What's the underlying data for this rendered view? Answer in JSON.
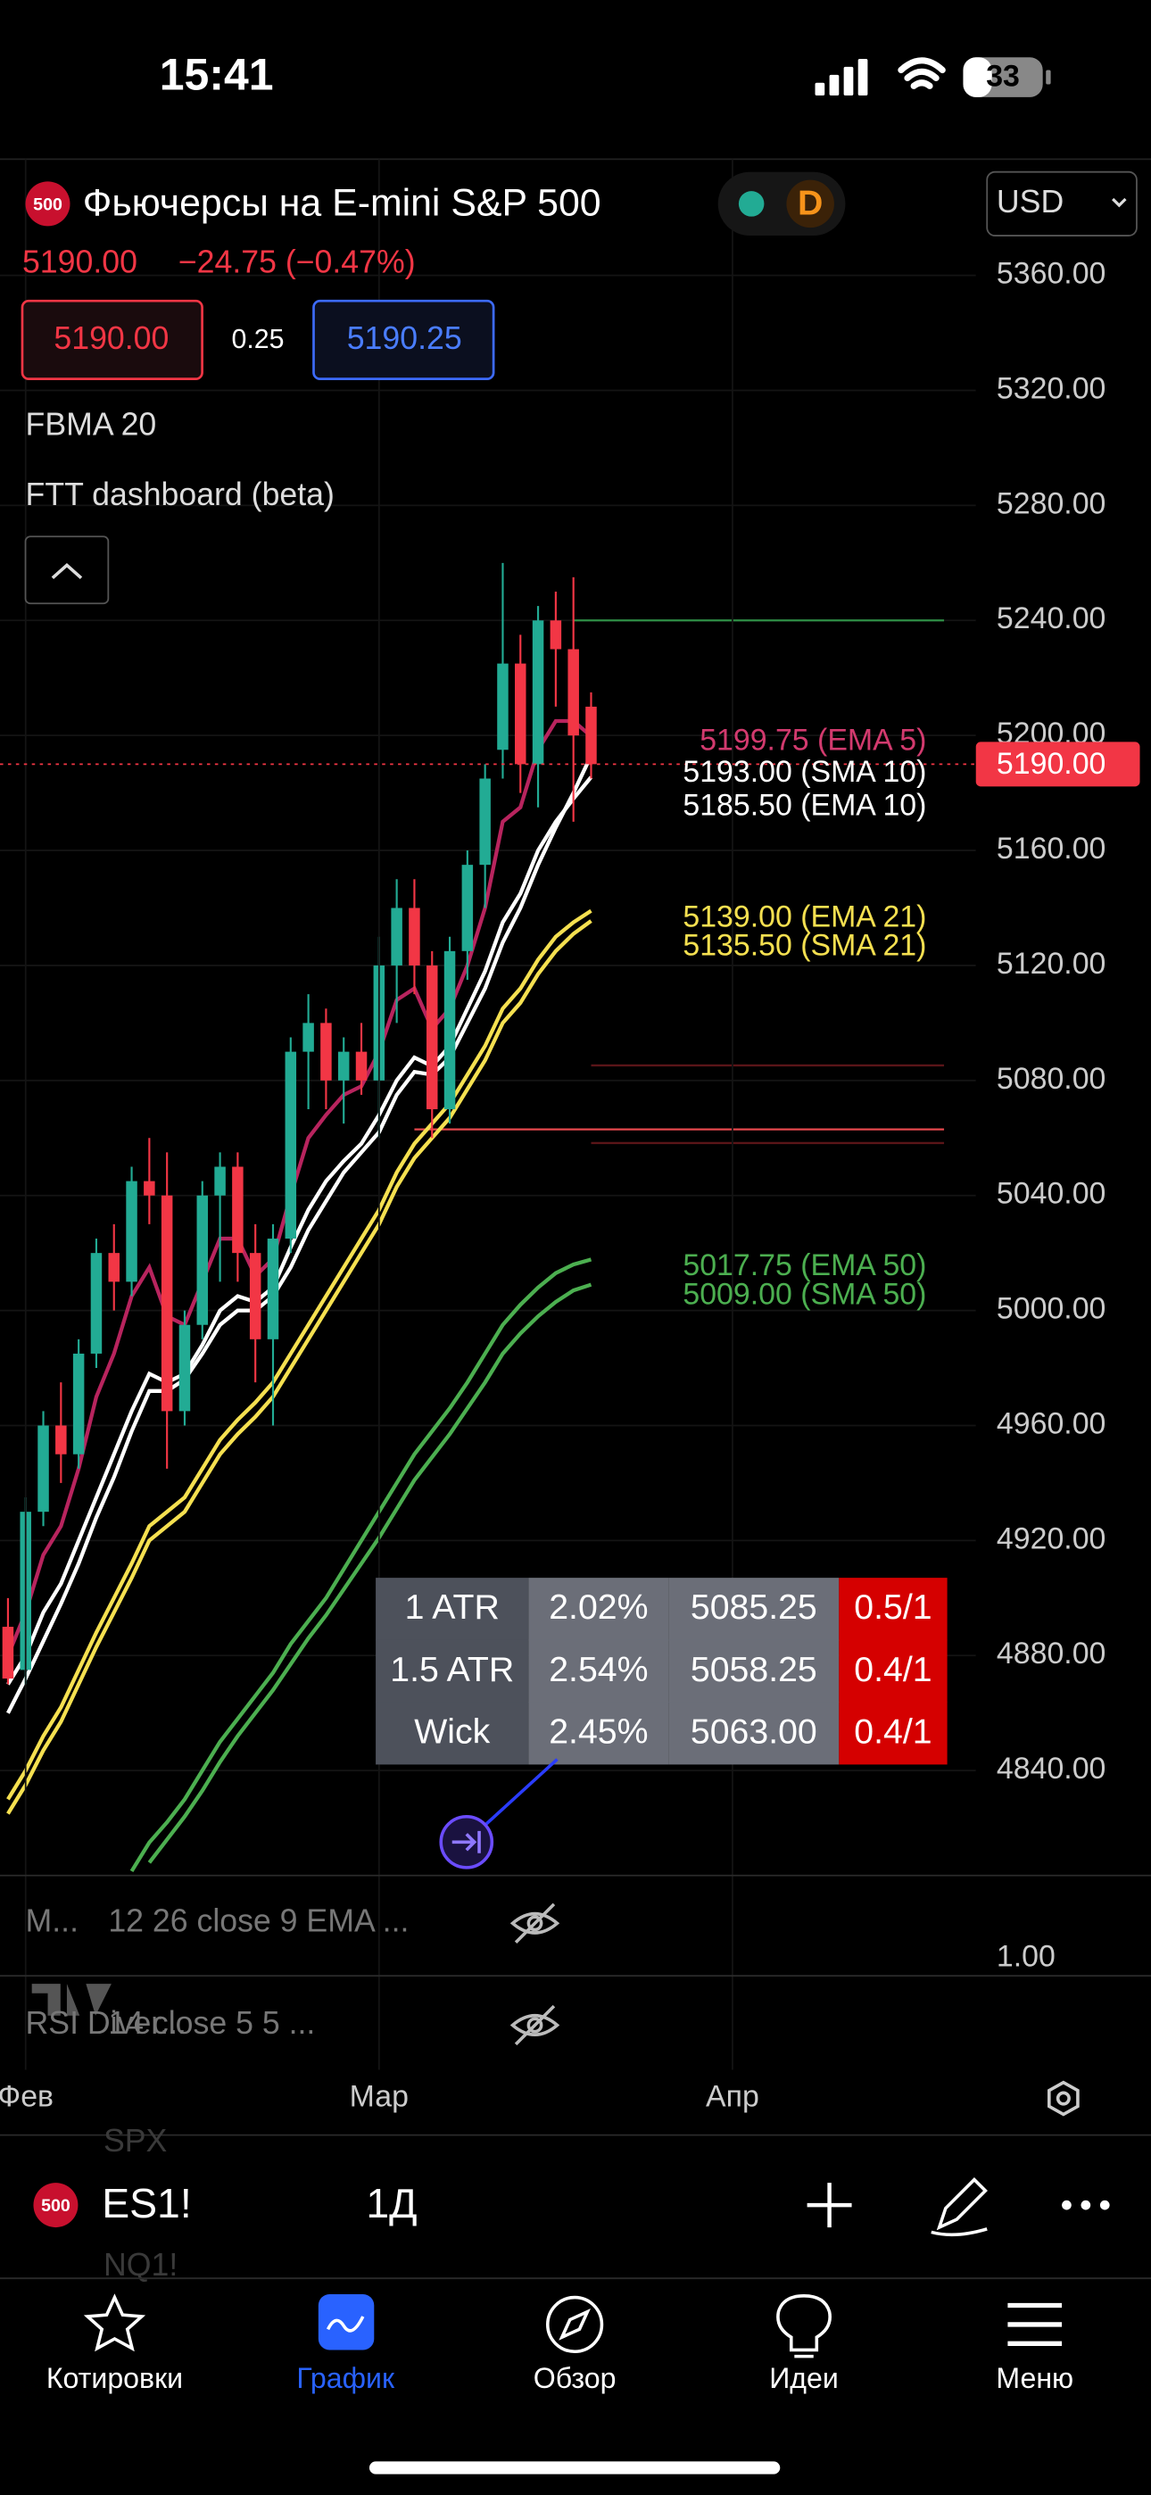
{
  "status_bar": {
    "time": "15:41",
    "battery": "33"
  },
  "header": {
    "symbol_badge": "500",
    "title": "Фьючерсы на E-mini S&P 500",
    "interval_badge": "D",
    "currency": "USD",
    "price": "5190.00",
    "change": "−24.75 (−0.47%)",
    "bid": "5190.00",
    "spread": "0.25",
    "ask": "5190.25",
    "indicators": [
      "FBMA 20",
      "FTT dashboard (beta)"
    ]
  },
  "chart_data": {
    "type": "candlestick",
    "ylim": [
      4803.5,
      5400.4
    ],
    "yticks": [
      {
        "value": 5360,
        "label": "5360.00"
      },
      {
        "value": 5320,
        "label": "5320.00"
      },
      {
        "value": 5280,
        "label": "5280.00"
      },
      {
        "value": 5240,
        "label": "5240.00"
      },
      {
        "value": 5200,
        "label": "5200.00"
      },
      {
        "value": 5160,
        "label": "5160.00"
      },
      {
        "value": 5120,
        "label": "5120.00"
      },
      {
        "value": 5080,
        "label": "5080.00"
      },
      {
        "value": 5040,
        "label": "5040.00"
      },
      {
        "value": 5000,
        "label": "5000.00"
      },
      {
        "value": 4960,
        "label": "4960.00"
      },
      {
        "value": 4920,
        "label": "4920.00"
      },
      {
        "value": 4880,
        "label": "4880.00"
      },
      {
        "value": 4840,
        "label": "4840.00"
      }
    ],
    "xticks": [
      {
        "value": 1,
        "label": "Фев"
      },
      {
        "value": 21,
        "label": "Мар"
      },
      {
        "value": 41,
        "label": "Апр"
      }
    ],
    "grid": true,
    "up_color": "#22ab94",
    "down_color": "#f23645",
    "candles": [
      {
        "open": 4890,
        "high": 4900,
        "low": 4870,
        "close": 4872
      },
      {
        "open": 4875,
        "high": 4935,
        "low": 4870,
        "close": 4930
      },
      {
        "open": 4930,
        "high": 4965,
        "low": 4925,
        "close": 4960
      },
      {
        "open": 4960,
        "high": 4975,
        "low": 4940,
        "close": 4950
      },
      {
        "open": 4950,
        "high": 4990,
        "low": 4945,
        "close": 4985
      },
      {
        "open": 4985,
        "high": 5025,
        "low": 4980,
        "close": 5020
      },
      {
        "open": 5020,
        "high": 5030,
        "low": 5000,
        "close": 5010
      },
      {
        "open": 5010,
        "high": 5050,
        "low": 5005,
        "close": 5045
      },
      {
        "open": 5045,
        "high": 5060,
        "low": 5030,
        "close": 5040
      },
      {
        "open": 5040,
        "high": 5055,
        "low": 4945,
        "close": 4965
      },
      {
        "open": 4965,
        "high": 5000,
        "low": 4960,
        "close": 4995
      },
      {
        "open": 4995,
        "high": 5045,
        "low": 4990,
        "close": 5040
      },
      {
        "open": 5040,
        "high": 5055,
        "low": 5010,
        "close": 5050
      },
      {
        "open": 5050,
        "high": 5055,
        "low": 5010,
        "close": 5020
      },
      {
        "open": 5020,
        "high": 5030,
        "low": 4975,
        "close": 4990
      },
      {
        "open": 4990,
        "high": 5030,
        "low": 4960,
        "close": 5025
      },
      {
        "open": 5025,
        "high": 5095,
        "low": 5020,
        "close": 5090
      },
      {
        "open": 5090,
        "high": 5110,
        "low": 5070,
        "close": 5100
      },
      {
        "open": 5100,
        "high": 5105,
        "low": 5070,
        "close": 5080
      },
      {
        "open": 5080,
        "high": 5095,
        "low": 5065,
        "close": 5090
      },
      {
        "open": 5090,
        "high": 5100,
        "low": 5075,
        "close": 5080
      },
      {
        "open": 5080,
        "high": 5130,
        "low": 5060,
        "close": 5120
      },
      {
        "open": 5120,
        "high": 5150,
        "low": 5100,
        "close": 5140
      },
      {
        "open": 5140,
        "high": 5150,
        "low": 5110,
        "close": 5120
      },
      {
        "open": 5120,
        "high": 5125,
        "low": 5060,
        "close": 5070
      },
      {
        "open": 5070,
        "high": 5130,
        "low": 5065,
        "close": 5125
      },
      {
        "open": 5125,
        "high": 5160,
        "low": 5115,
        "close": 5155
      },
      {
        "open": 5155,
        "high": 5190,
        "low": 5140,
        "close": 5185
      },
      {
        "open": 5195,
        "high": 5260,
        "low": 5185,
        "close": 5225
      },
      {
        "open": 5225,
        "high": 5235,
        "low": 5180,
        "close": 5190
      },
      {
        "open": 5190,
        "high": 5245,
        "low": 5175,
        "close": 5240
      },
      {
        "open": 5240,
        "high": 5250,
        "low": 5210,
        "close": 5230
      },
      {
        "open": 5230,
        "high": 5255,
        "low": 5170,
        "close": 5200
      },
      {
        "open": 5210,
        "high": 5215,
        "low": 5185,
        "close": 5190
      }
    ],
    "series": [
      {
        "name": "EMA 5",
        "color": "#b8245e",
        "label_color": "#d23a6e",
        "label": "5199.75 (EMA 5)",
        "values": [
          4880,
          4895,
          4915,
          4925,
          4945,
          4970,
          4985,
          5005,
          5015,
          4998,
          4995,
          5010,
          5025,
          5025,
          5012,
          5018,
          5040,
          5060,
          5068,
          5075,
          5078,
          5090,
          5108,
          5112,
          5098,
          5105,
          5120,
          5140,
          5170,
          5175,
          5195,
          5205,
          5205,
          5199.75
        ]
      },
      {
        "name": "SMA 10",
        "color": "#ffffff",
        "label_color": "#ffffff",
        "label": "5193.00 (SMA 10)",
        "values": [
          4860,
          4872,
          4885,
          4898,
          4912,
          4928,
          4942,
          4958,
          4972,
          4972,
          4976,
          4985,
          4995,
          5000,
          5000,
          5005,
          5015,
          5028,
          5038,
          5048,
          5055,
          5062,
          5075,
          5083,
          5082,
          5088,
          5100,
          5112,
          5128,
          5140,
          5155,
          5168,
          5180,
          5193
        ]
      },
      {
        "name": "EMA 10",
        "color": "#ffffff",
        "label_color": "#ffffff",
        "label": "5185.50 (EMA 10)",
        "values": [
          4870,
          4880,
          4895,
          4905,
          4920,
          4935,
          4950,
          4965,
          4978,
          4975,
          4978,
          4988,
          5000,
          5005,
          5003,
          5008,
          5022,
          5035,
          5045,
          5052,
          5058,
          5068,
          5080,
          5088,
          5085,
          5092,
          5105,
          5118,
          5135,
          5145,
          5160,
          5170,
          5178,
          5185.5
        ]
      },
      {
        "name": "EMA 21",
        "color": "#f5e050",
        "label_color": "#f5e050",
        "label": "5139.00 (EMA 21)",
        "values": [
          4830,
          4840,
          4852,
          4862,
          4875,
          4888,
          4900,
          4912,
          4925,
          4930,
          4935,
          4945,
          4955,
          4962,
          4968,
          4975,
          4985,
          4995,
          5005,
          5015,
          5025,
          5035,
          5048,
          5058,
          5065,
          5072,
          5082,
          5092,
          5105,
          5112,
          5122,
          5130,
          5135,
          5139
        ]
      },
      {
        "name": "SMA 21",
        "color": "#f5e050",
        "label_color": "#f5e050",
        "label": "5135.50 (SMA 21)",
        "values": [
          4825,
          4835,
          4847,
          4857,
          4870,
          4883,
          4895,
          4907,
          4920,
          4925,
          4930,
          4940,
          4950,
          4957,
          4963,
          4970,
          4980,
          4990,
          5000,
          5010,
          5020,
          5030,
          5043,
          5053,
          5060,
          5067,
          5077,
          5087,
          5100,
          5107,
          5117,
          5125,
          5131,
          5135.5
        ]
      },
      {
        "name": "EMA 50",
        "color": "#4caf50",
        "label_color": "#4caf50",
        "label": "5017.75 (EMA 50)",
        "values": [
          null,
          null,
          null,
          null,
          null,
          null,
          null,
          4805,
          4815,
          4822,
          4830,
          4840,
          4850,
          4858,
          4866,
          4874,
          4884,
          4892,
          4900,
          4910,
          4920,
          4930,
          4940,
          4950,
          4958,
          4966,
          4975,
          4985,
          4995,
          5002,
          5008,
          5013,
          5016,
          5017.75
        ]
      },
      {
        "name": "SMA 50",
        "color": "#4caf50",
        "label_color": "#4caf50",
        "label": "5009.00 (SMA 50)",
        "values": [
          null,
          null,
          null,
          null,
          null,
          null,
          null,
          null,
          4808,
          4816,
          4824,
          4833,
          4843,
          4852,
          4860,
          4868,
          4877,
          4886,
          4894,
          4903,
          4912,
          4921,
          4931,
          4941,
          4949,
          4957,
          4966,
          4975,
          4985,
          4992,
          4998,
          5003,
          5007,
          5009
        ]
      }
    ],
    "current_price": {
      "value": 5190,
      "label": "5190.00",
      "color": "#f23645"
    },
    "levels": [
      {
        "value": 5240,
        "from": 32,
        "color": "#2f8f46"
      },
      {
        "value": 5063,
        "from": 23,
        "color": "#e5484d"
      },
      {
        "value": 5085.25,
        "from": 33,
        "color": "#5a1518"
      },
      {
        "value": 5058.25,
        "from": 33,
        "color": "#5a1518"
      }
    ]
  },
  "atr_table": {
    "rows": [
      [
        "1 ATR",
        "2.02%",
        "5085.25",
        "0.5/1"
      ],
      [
        "1.5 ATR",
        "2.54%",
        "5058.25",
        "0.4/1"
      ],
      [
        "Wick",
        "2.45%",
        "5063.00",
        "0.4/1"
      ]
    ]
  },
  "panes": [
    {
      "name": "M...",
      "params": "12 26 close 9 EMA ..."
    },
    {
      "name": "RSI Diver...",
      "params": "14 close 5 5 ..."
    }
  ],
  "pane_axis_label": "1.00",
  "ghost_symbols": [
    "SPX",
    "NQ1!"
  ],
  "toolbar": {
    "badge": "500",
    "symbol": "ES1!",
    "interval": "1Д"
  },
  "nav": [
    "Котировки",
    "График",
    "Обзор",
    "Идеи",
    "Меню"
  ]
}
